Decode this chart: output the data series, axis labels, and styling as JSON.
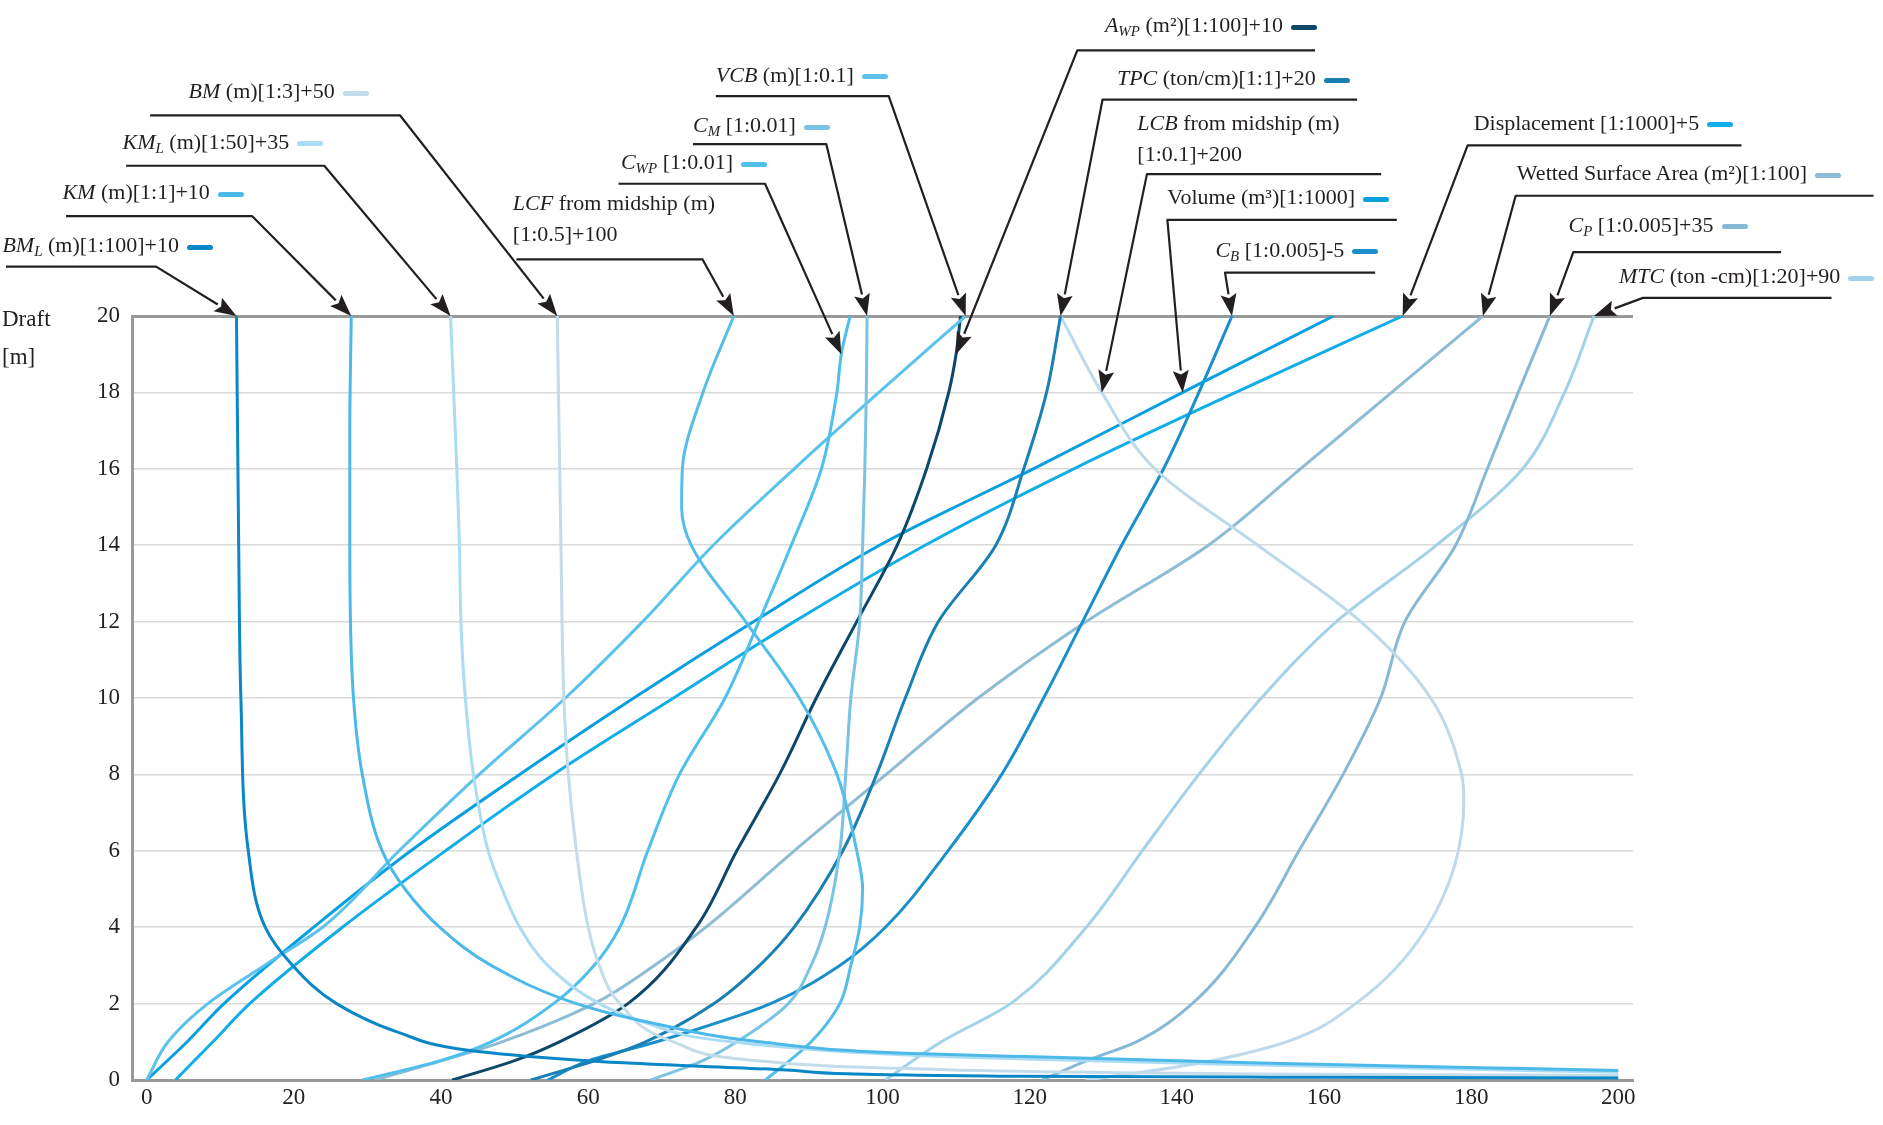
{
  "chart_data": {
    "type": "line",
    "ylabel": "Draft [m]",
    "xlim": [
      -2,
      202
    ],
    "xticks": [
      0,
      20,
      40,
      60,
      80,
      100,
      120,
      140,
      160,
      180,
      200
    ],
    "ylim": [
      0,
      20
    ],
    "yticks": [
      0,
      2,
      4,
      6,
      8,
      10,
      12,
      14,
      16,
      18,
      20
    ],
    "grid": "y",
    "marker": "none",
    "legend": "top",
    "series": [
      {
        "name": "BM$_{L}$ (m)[1:100]+10",
        "color": "#0a87c6",
        "x": [
          200,
          160,
          116,
          87,
          62,
          43.7,
          34.3,
          25.8,
          19.6,
          16.1,
          13.8,
          12.8,
          12.5,
          12.2
        ],
        "values": [
          0.05,
          0.07,
          0.1,
          0.26,
          0.48,
          0.78,
          1.24,
          2,
          3.05,
          4,
          6,
          10,
          14,
          20
        ]
      },
      {
        "name": "KM (m)[1:1]+10",
        "color": "#4cb9e8",
        "x": [
          200,
          150,
          103,
          83.3,
          68.5,
          58.4,
          46.8,
          39.8,
          35.1,
          32,
          29.3,
          28.1,
          27.6,
          27.6,
          27.8
        ],
        "values": [
          0.25,
          0.45,
          0.7,
          1,
          1.5,
          2,
          3,
          4,
          5,
          6,
          8,
          10,
          14,
          17,
          20
        ]
      },
      {
        "name": "KM$_{L}$ (m)[1:50]+35",
        "color": "#aadcf3",
        "x": [
          200,
          150,
          110,
          79.4,
          67.8,
          61.5,
          54.5,
          50.7,
          48.3,
          46.4,
          44.4,
          43.3,
          42.7,
          42.5,
          41.3
        ],
        "values": [
          0.2,
          0.4,
          0.6,
          1,
          1.5,
          2,
          3,
          4,
          5,
          6,
          8,
          10,
          12,
          14,
          20
        ]
      },
      {
        "name": "BM (m)[1:3]+50",
        "color": "#c3dcea",
        "x": [
          200,
          150,
          103,
          83.3,
          71.6,
          64.3,
          61.5,
          60,
          58.4,
          57.3,
          56.7,
          56.3,
          55.8
        ],
        "values": [
          0.12,
          0.16,
          0.3,
          0.5,
          1,
          2,
          3,
          4,
          6,
          8,
          10,
          14,
          20
        ]
      },
      {
        "name": "LCF from midship (m) [1:0.5]+100",
        "color": "#55bde9",
        "x": [
          84.1,
          90.3,
          94.2,
          95.7,
          96.9,
          97.3,
          96.5,
          93.8,
          88.7,
          81.4,
          74,
          72.7,
          72.8,
          75.6,
          79.8
        ],
        "values": [
          0,
          1,
          2,
          3,
          4,
          5,
          6,
          8,
          10,
          12,
          14,
          15,
          16,
          18,
          20
        ]
      },
      {
        "name": "C$_{WP}$ [1:0.01]",
        "color": "#4fbfec",
        "x": [
          29.3,
          39.8,
          46.8,
          55.3,
          60.8,
          64.3,
          68.1,
          72.4,
          78.6,
          83.2,
          87.6,
          91.7,
          93.8,
          94.4,
          95.6
        ],
        "values": [
          0,
          0.5,
          1,
          2,
          3,
          4,
          6,
          8,
          10,
          12,
          14,
          16,
          18,
          19,
          20
        ]
      },
      {
        "name": "C$_{M}$ [1:0.01]",
        "color": "#7ac3e3",
        "x": [
          68.5,
          75.5,
          80.2,
          87.2,
          90.3,
          92.2,
          94.2,
          95,
          95.7,
          96.9,
          97.3,
          97.6,
          97.8,
          97.9
        ],
        "values": [
          0,
          0.5,
          1,
          2,
          3,
          4,
          6,
          8,
          10,
          12,
          14,
          16,
          18,
          20
        ]
      },
      {
        "name": "VCB (m)[1:0.1]",
        "color": "#5cc2ec",
        "x": [
          0,
          2.9,
          8.3,
          16,
          23.9,
          34.3,
          45.2,
          56.9,
          67.4,
          77,
          88,
          99.5,
          111.3
        ],
        "values": [
          0,
          1,
          2,
          3,
          4,
          6,
          8,
          10,
          12,
          14,
          16,
          18,
          20
        ]
      },
      {
        "name": "A$_{WP}$ (m²)[1:100]+10",
        "color": "#0d4769",
        "x": [
          41.5,
          49.9,
          56.1,
          65.4,
          74.7,
          80.2,
          86,
          91,
          96.5,
          102,
          106,
          109,
          110,
          110.6
        ],
        "values": [
          0,
          0.5,
          1,
          2,
          4,
          6,
          8,
          10,
          12,
          14,
          16,
          18,
          19,
          20
        ]
      },
      {
        "name": "TPC (ton/cm)[1:1]+20",
        "color": "#1a7fb2",
        "x": [
          52.2,
          60.8,
          67.8,
          77.1,
          83.3,
          88,
          94.6,
          99.2,
          103.1,
          107.6,
          115.4,
          119.2,
          122.3,
          124.2
        ],
        "values": [
          0,
          0.5,
          1,
          2,
          3,
          4,
          6,
          8,
          10,
          12,
          14,
          16,
          18,
          20
        ]
      },
      {
        "name": "LCB from midship (m) [1:0.1]+200",
        "color": "#bcdaeb",
        "x": [
          127.7,
          143,
          154.9,
          164.3,
          174,
          179,
          178.7,
          174.5,
          165,
          151,
          137,
          129.8,
          124.2
        ],
        "values": [
          0,
          0.44,
          1,
          2,
          4,
          7.3,
          8,
          10,
          12,
          14,
          16,
          18,
          20
        ]
      },
      {
        "name": "Volume (m³)[1:1000]",
        "color": "#0a9fe0",
        "x": [
          0,
          5.5,
          10.5,
          22.7,
          35.9,
          50.7,
          66.2,
          82.5,
          99.6,
          120.5,
          140.8,
          161.3
        ],
        "values": [
          0,
          1,
          2,
          4,
          6,
          8,
          10,
          12,
          14,
          16,
          18,
          20
        ]
      },
      {
        "name": "C$_{B}$ [1:0.005]-5",
        "color": "#1a8fcb",
        "x": [
          54.5,
          60,
          69.3,
          84.8,
          94.2,
          100.4,
          108.9,
          116.2,
          121.9,
          127.2,
          132.5,
          138.2,
          143,
          147.5
        ],
        "values": [
          0,
          0.5,
          1,
          2,
          3,
          4,
          6,
          8,
          10,
          12,
          14,
          16,
          18,
          20
        ]
      },
      {
        "name": "Displacement [1:1000]+5",
        "color": "#11aee8",
        "x": [
          3.9,
          9,
          14,
          26.6,
          40.6,
          55.3,
          71.6,
          88,
          105.8,
          126,
          148,
          170.7
        ],
        "values": [
          0,
          1,
          2,
          4,
          6,
          8,
          10,
          12,
          14,
          16,
          18,
          20
        ]
      },
      {
        "name": "Wetted Surface Area (m²)[1:100]",
        "color": "#8dbcd5",
        "x": [
          31,
          40,
          48.3,
          60.8,
          69,
          76,
          88,
          100.5,
          113,
          127.7,
          144.3,
          156.8,
          169.2,
          181.6
        ],
        "values": [
          0,
          0.5,
          1,
          2,
          3,
          4,
          6,
          8,
          10,
          12,
          14,
          16,
          18,
          20
        ]
      },
      {
        "name": "C$_{P}$ [1:0.005]+35",
        "color": "#86b9d5",
        "x": [
          121.7,
          127.7,
          134.5,
          142.1,
          150.6,
          156.6,
          162.6,
          167.7,
          171,
          177.9,
          182.2,
          186.4,
          190.7
        ],
        "values": [
          0,
          0.5,
          1,
          2,
          4,
          6,
          8,
          10,
          12,
          14,
          16,
          18,
          20
        ]
      },
      {
        "name": "MTC (ton -cm)[1:20]+90",
        "color": "#a2d2e9",
        "x": [
          100.4,
          108,
          117.4,
          127.7,
          135.3,
          143,
          151.5,
          161.7,
          175.3,
          187,
          192.7,
          196.7
        ],
        "values": [
          0,
          1,
          2,
          4,
          6,
          8,
          10,
          12,
          14,
          16,
          18,
          20
        ]
      }
    ]
  }
}
